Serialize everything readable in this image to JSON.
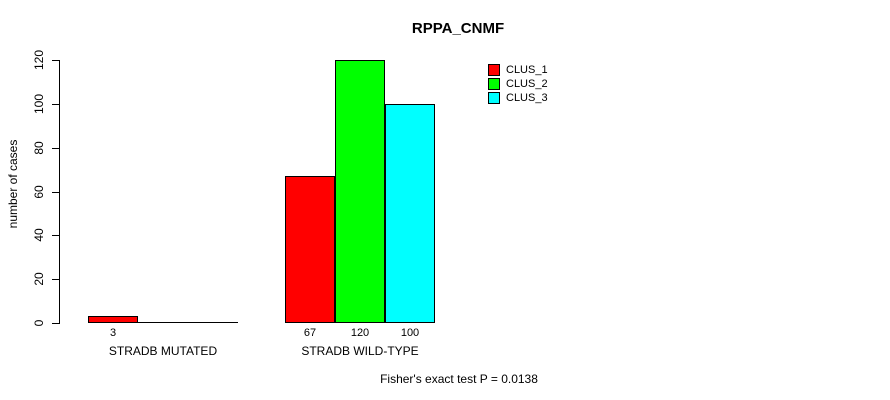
{
  "chart_data": {
    "type": "bar",
    "title": "RPPA_CNMF",
    "xlabel": "",
    "ylabel": "number of cases",
    "ylim": [
      0,
      120
    ],
    "yticks": [
      0,
      20,
      40,
      60,
      80,
      100,
      120
    ],
    "categories": [
      "STRADB MUTATED",
      "STRADB WILD-TYPE"
    ],
    "series": [
      {
        "name": "CLUS_1",
        "color": "#ff0000",
        "values": [
          3,
          67
        ]
      },
      {
        "name": "CLUS_2",
        "color": "#00ff00",
        "values": [
          0,
          120
        ]
      },
      {
        "name": "CLUS_3",
        "color": "#00ffff",
        "values": [
          0,
          100
        ]
      }
    ],
    "bar_value_labels": {
      "shown_for_nonzero_only": true,
      "labels": [
        "3",
        "67",
        "120",
        "100"
      ]
    },
    "legend": {
      "position": "top-right",
      "entries": [
        "CLUS_1",
        "CLUS_2",
        "CLUS_3"
      ]
    },
    "annotation": "Fisher's exact test P = 0.0138",
    "grid": false,
    "background_color": "#ffffff",
    "axis_color": "#000000",
    "text_color": "#000000"
  }
}
